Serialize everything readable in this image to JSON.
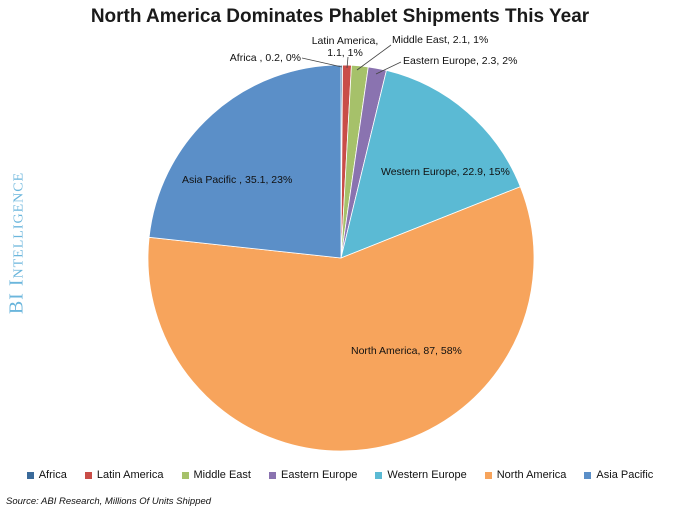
{
  "chart_data": {
    "type": "pie",
    "title": "North America Dominates Phablet Shipments This Year",
    "unit_note": "Millions Of Units Shipped",
    "start_angle_deg": 0,
    "direction": "clockwise",
    "legend_position": "bottom",
    "slices": [
      {
        "name": "Africa",
        "value": 0.2,
        "percent": "0%",
        "label": "Africa , 0.2, 0%",
        "color": "#3a6a9a"
      },
      {
        "name": "Latin America",
        "value": 1.1,
        "percent": "1%",
        "label": "Latin America, 1.1, 1%",
        "color": "#c94d48"
      },
      {
        "name": "Middle East",
        "value": 2.1,
        "percent": "1%",
        "label": "Middle East, 2.1, 1%",
        "color": "#a6c16a"
      },
      {
        "name": "Eastern Europe",
        "value": 2.3,
        "percent": "2%",
        "label": "Eastern Europe, 2.3, 2%",
        "color": "#8a73b0"
      },
      {
        "name": "Western Europe",
        "value": 22.9,
        "percent": "15%",
        "label": "Western Europe, 22.9, 15%",
        "color": "#5bbad4"
      },
      {
        "name": "North America",
        "value": 87,
        "percent": "58%",
        "label": "North America, 87, 58%",
        "color": "#f7a45c"
      },
      {
        "name": "Asia Pacific",
        "value": 35.1,
        "percent": "23%",
        "label": "Asia Pacific , 35.1, 23%",
        "color": "#5b8fc8"
      }
    ]
  },
  "watermark": "BI Intelligence",
  "source_note": "Source: ABI Research, Millions Of Units Shipped"
}
